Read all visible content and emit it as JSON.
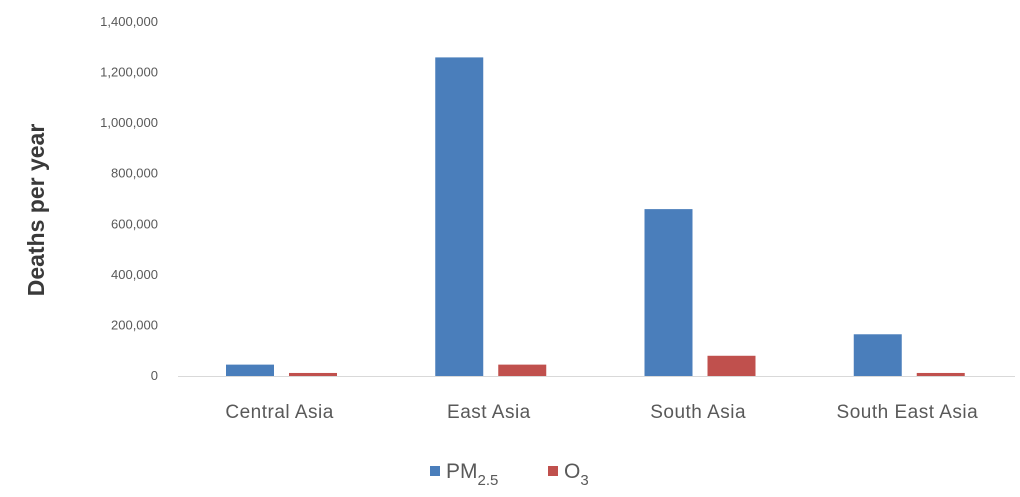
{
  "chart_data": {
    "type": "bar",
    "ylabel": "Deaths per year",
    "xlabel": "",
    "ylim": [
      0,
      1400000
    ],
    "yticks": [
      0,
      200000,
      400000,
      600000,
      800000,
      1000000,
      1200000,
      1400000
    ],
    "ytick_labels": [
      "0",
      "200,000",
      "400,000",
      "600,000",
      "800,000",
      "1,000,000",
      "1,200,000",
      "1,400,000"
    ],
    "categories": [
      "Central Asia",
      "East Asia",
      "South Asia",
      "South East Asia"
    ],
    "series": [
      {
        "name": "PM2.5",
        "legend_main": "PM",
        "legend_sub": "2.5",
        "color": "#4a7ebb",
        "values": [
          45000,
          1260000,
          660000,
          165000
        ]
      },
      {
        "name": "O3",
        "legend_main": "O",
        "legend_sub": "3",
        "color": "#c0504d",
        "values": [
          12000,
          45000,
          80000,
          12000
        ]
      }
    ],
    "grid": false,
    "legend_position": "bottom-center"
  }
}
